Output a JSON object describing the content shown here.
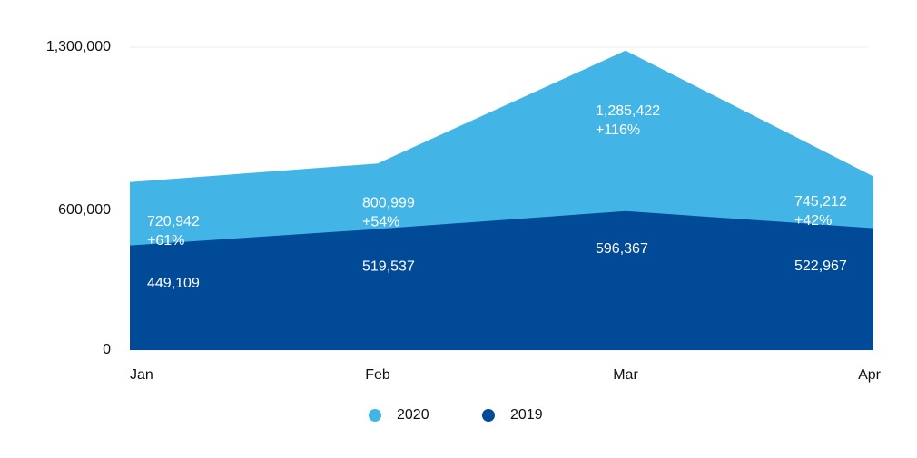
{
  "chart_data": {
    "type": "area",
    "categories": [
      "Jan",
      "Feb",
      "Mar",
      "Apr"
    ],
    "series": [
      {
        "name": "2020",
        "color": "#43b4e6",
        "values": [
          720942,
          800999,
          1285422,
          745212
        ],
        "value_labels": [
          "720,942",
          "800,999",
          "1,285,422",
          "745,212"
        ],
        "changes": [
          "+61%",
          "+54%",
          "+116%",
          "+42%"
        ]
      },
      {
        "name": "2019",
        "color": "#004a97",
        "values": [
          449109,
          519537,
          596367,
          522967
        ],
        "value_labels": [
          "449,109",
          "519,537",
          "596,367",
          "522,967"
        ]
      }
    ],
    "ylim": [
      0,
      1300000
    ],
    "yticks": [
      0,
      {
        "value": 600000,
        "label": "600,000"
      },
      {
        "value": 1300000,
        "label": "1,300,000"
      }
    ],
    "grid": true,
    "legend": "bottom"
  }
}
